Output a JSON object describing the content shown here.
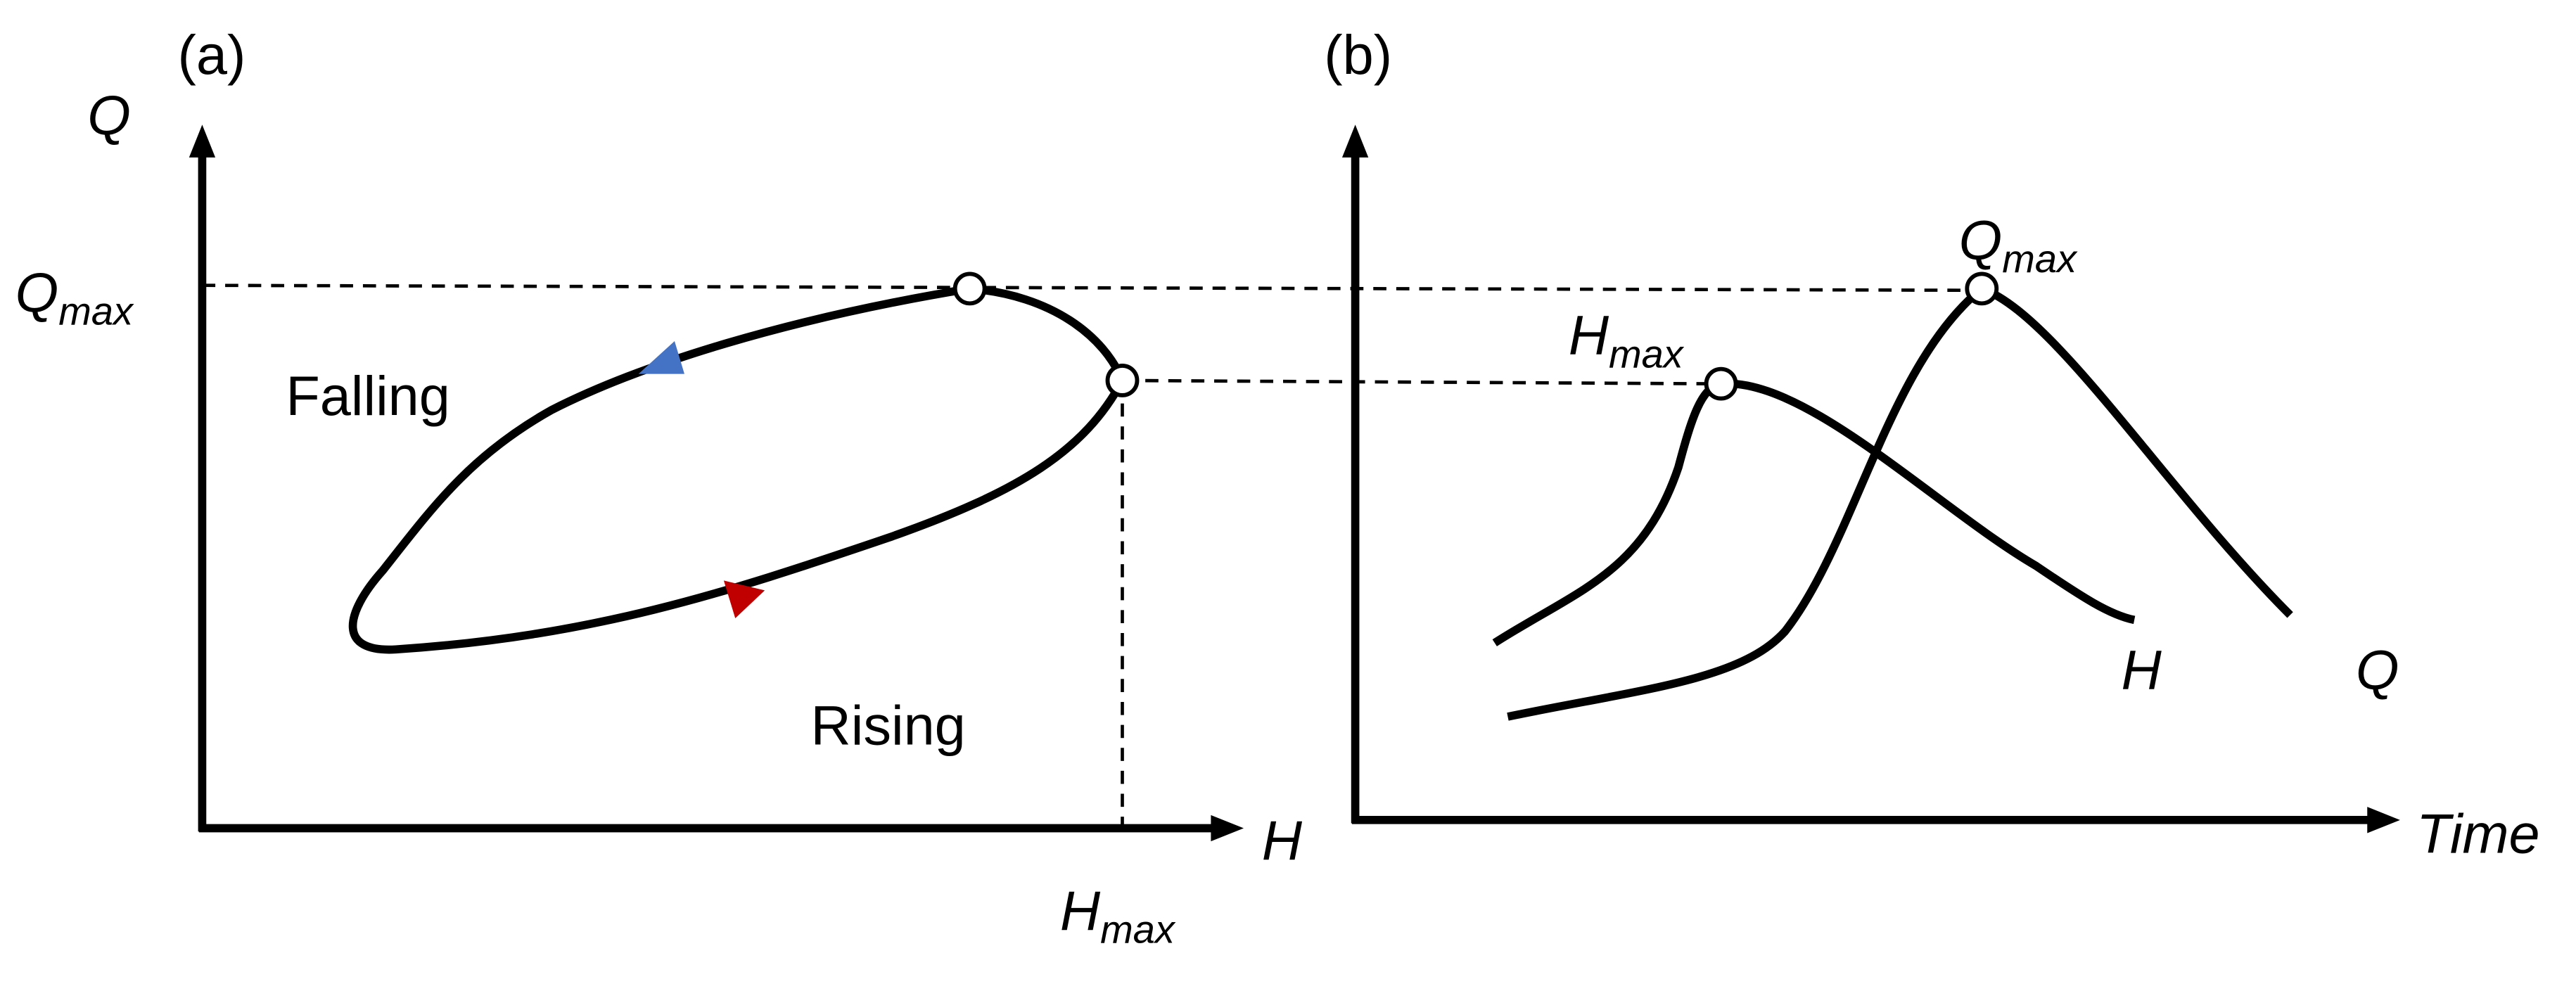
{
  "panel_a": {
    "label": "(a)",
    "y_axis": "Q",
    "x_axis": "H",
    "q_max": {
      "main": "Q",
      "sub": "max"
    },
    "h_max": {
      "main": "H",
      "sub": "max"
    },
    "falling": "Falling",
    "rising": "Rising"
  },
  "panel_b": {
    "label": "(b)",
    "x_axis": "Time",
    "h_max": {
      "main": "H",
      "sub": "max"
    },
    "q_max": {
      "main": "Q",
      "sub": "max"
    },
    "h_curve": "H",
    "q_curve": "Q"
  }
}
